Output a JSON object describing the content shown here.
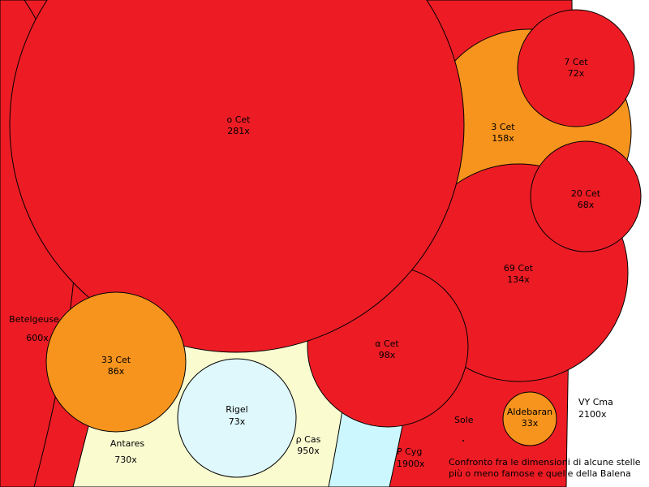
{
  "colors": {
    "red": "#ed1c24",
    "orange": "#f7941d",
    "cream": "#fafcd0",
    "pale_cyan": "#ccf7ff",
    "light_cyan": "#dff8fb",
    "white": "#ffffff",
    "outline": "#000000"
  },
  "stars": {
    "vy_cma": {
      "name": "VY Cma",
      "size": "2100x"
    },
    "betelgeuse": {
      "name": "Betelgeuse",
      "size": "600x"
    },
    "antares": {
      "name": "Antares",
      "size": "730x"
    },
    "rho_cas": {
      "name": "ρ Cas",
      "size": "950x"
    },
    "p_cyg": {
      "name": "P Cyg",
      "size": "1900x"
    },
    "o_cet": {
      "name": "o Cet",
      "size": "281x"
    },
    "three_cet": {
      "name": "3 Cet",
      "size": "158x"
    },
    "seven_cet": {
      "name": "7 Cet",
      "size": "72x"
    },
    "twenty_cet": {
      "name": "20 Cet",
      "size": "68x"
    },
    "sixtynine_cet": {
      "name": "69 Cet",
      "size": "134x"
    },
    "alpha_cet": {
      "name": "α Cet",
      "size": "98x"
    },
    "thirtythree_cet": {
      "name": "33 Cet",
      "size": "86x"
    },
    "rigel": {
      "name": "Rigel",
      "size": "73x"
    },
    "aldebaran": {
      "name": "Aldebaran",
      "size": "33x"
    },
    "sole": {
      "name": "Sole"
    }
  },
  "caption": {
    "line1": "Confronto fra le dimensioni di alcune stelle",
    "line2": "più o meno famose e quelle della Balena"
  }
}
